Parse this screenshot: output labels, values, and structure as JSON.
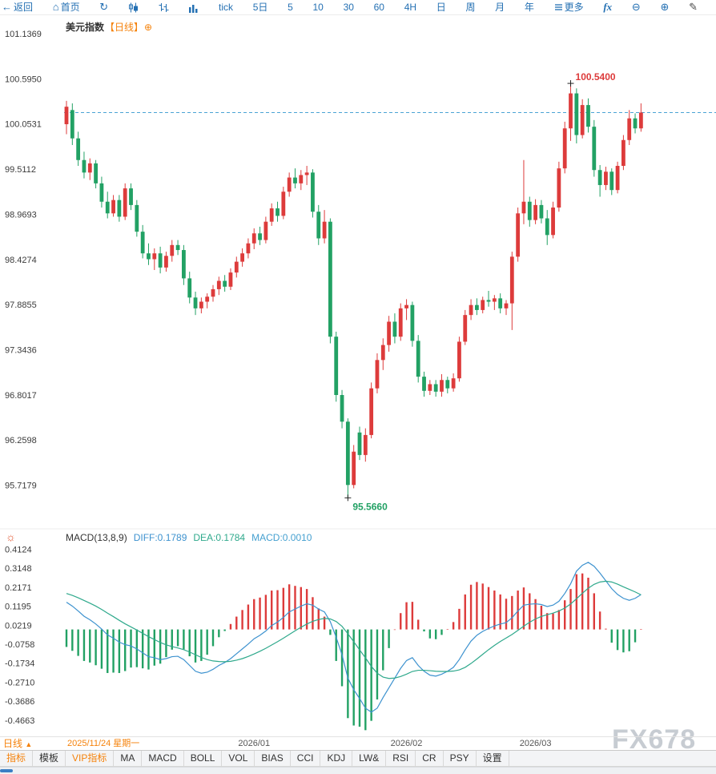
{
  "ui": {
    "toolbar": {
      "items": [
        {
          "name": "back-button",
          "icon": "back-icon",
          "label": "返回"
        },
        {
          "name": "home-button",
          "icon": "home-icon",
          "label": "首页"
        },
        {
          "name": "refresh-button",
          "icon": "refresh-icon",
          "label": ""
        },
        {
          "name": "candlestick-style-button",
          "icon": "candlestick-icon",
          "label": ""
        },
        {
          "name": "ohlc-style-button",
          "icon": "ohlc-bars-icon",
          "label": ""
        },
        {
          "name": "histogram-style-button",
          "icon": "histogram-icon",
          "label": ""
        },
        {
          "name": "period-tick-button",
          "label": "tick"
        },
        {
          "name": "period-5day-button",
          "label": "5日"
        },
        {
          "name": "period-5min-button",
          "label": "5"
        },
        {
          "name": "period-10min-button",
          "label": "10"
        },
        {
          "name": "period-30min-button",
          "label": "30"
        },
        {
          "name": "period-60min-button",
          "label": "60"
        },
        {
          "name": "period-4hour-button",
          "label": "4H"
        },
        {
          "name": "period-day-button",
          "label": "日"
        },
        {
          "name": "period-week-button",
          "label": "周"
        },
        {
          "name": "period-month-button",
          "label": "月"
        },
        {
          "name": "period-year-button",
          "label": "年"
        },
        {
          "name": "more-button",
          "icon": "menu-icon",
          "label": "更多"
        },
        {
          "name": "formula-button",
          "label": "fx"
        },
        {
          "name": "zoom-out-button",
          "icon": "zoom-out-icon",
          "label": ""
        },
        {
          "name": "zoom-in-button",
          "icon": "zoom-in-icon",
          "label": ""
        },
        {
          "name": "draw-pen-button",
          "icon": "pen-icon",
          "label": ""
        },
        {
          "name": "eraser-button",
          "icon": "eraser-icon",
          "label": ""
        }
      ]
    },
    "title": {
      "period_tag": "【日线】",
      "add_icon": "⊕"
    },
    "macd_header": {
      "sun_icon": "☼"
    },
    "x_axis": {
      "period_label": "日线",
      "period_arrow": "▲",
      "date_label": "2025/11/24 星期一"
    },
    "tabs": [
      {
        "name": "tab-indicators",
        "label": "指标",
        "accent": true
      },
      {
        "name": "tab-templates",
        "label": "模板",
        "accent": false
      },
      {
        "name": "tab-vip-indicators",
        "label": "VIP指标",
        "accent": true
      },
      {
        "name": "tab-ma",
        "label": "MA",
        "accent": false
      },
      {
        "name": "tab-macd",
        "label": "MACD",
        "accent": false
      },
      {
        "name": "tab-boll",
        "label": "BOLL",
        "accent": false
      },
      {
        "name": "tab-vol",
        "label": "VOL",
        "accent": false
      },
      {
        "name": "tab-bias",
        "label": "BIAS",
        "accent": false
      },
      {
        "name": "tab-cci",
        "label": "CCI",
        "accent": false
      },
      {
        "name": "tab-kdj",
        "label": "KDJ",
        "accent": false
      },
      {
        "name": "tab-lw",
        "label": "LW&",
        "accent": false
      },
      {
        "name": "tab-rsi",
        "label": "RSI",
        "accent": false
      },
      {
        "name": "tab-cr",
        "label": "CR",
        "accent": false
      },
      {
        "name": "tab-psy",
        "label": "PSY",
        "accent": false
      },
      {
        "name": "tab-settings",
        "label": "设置",
        "accent": false
      }
    ],
    "watermark": "FX678"
  },
  "colors": {
    "toolbar_blue": "#2470b3",
    "accent": "#f5820b",
    "up": "#dd3b3b",
    "down": "#22a164",
    "diff_line": "#3d92cf",
    "dea_line": "#2fa98c",
    "macd_value_label": "#45a0d0",
    "dashed_price_line": "#4aa3d4",
    "axis_text": "#3b3b3b",
    "watermark": "#c7ccd2",
    "sun_icon": "#e2542e",
    "scroll_thumb": "#3b7fc4"
  },
  "chart_data": [
    {
      "type": "candlestick",
      "symbol": "美元指数",
      "period": "日线",
      "title": "美元指数【日线】",
      "y_ticks": [
        "101.1369",
        "100.5950",
        "100.0531",
        "99.5112",
        "98.9693",
        "98.4274",
        "97.8855",
        "97.3436",
        "96.8017",
        "96.2598",
        "95.7179"
      ],
      "ylim": [
        95.24,
        101.37
      ],
      "legend_position": "top-left",
      "grid": false,
      "candles": [
        [
          100.05,
          100.33,
          99.93,
          100.26
        ],
        [
          100.22,
          100.3,
          99.8,
          99.88
        ],
        [
          99.88,
          99.96,
          99.55,
          99.62
        ],
        [
          99.62,
          99.72,
          99.4,
          99.47
        ],
        [
          99.47,
          99.64,
          99.38,
          99.58
        ],
        [
          99.58,
          99.62,
          99.28,
          99.34
        ],
        [
          99.34,
          99.42,
          99.05,
          99.12
        ],
        [
          99.12,
          99.24,
          98.92,
          98.98
        ],
        [
          98.98,
          99.2,
          98.94,
          99.14
        ],
        [
          99.14,
          99.2,
          98.88,
          98.94
        ],
        [
          98.94,
          99.34,
          98.9,
          99.28
        ],
        [
          99.28,
          99.34,
          99.02,
          99.08
        ],
        [
          99.08,
          99.14,
          98.7,
          98.76
        ],
        [
          98.76,
          98.84,
          98.44,
          98.5
        ],
        [
          98.5,
          98.62,
          98.36,
          98.43
        ],
        [
          98.43,
          98.56,
          98.3,
          98.5
        ],
        [
          98.5,
          98.58,
          98.26,
          98.33
        ],
        [
          98.33,
          98.52,
          98.28,
          98.47
        ],
        [
          98.47,
          98.66,
          98.4,
          98.6
        ],
        [
          98.6,
          98.66,
          98.48,
          98.54
        ],
        [
          98.54,
          98.6,
          98.12,
          98.2
        ],
        [
          98.2,
          98.28,
          97.9,
          97.97
        ],
        [
          97.97,
          98.04,
          97.76,
          97.84
        ],
        [
          97.84,
          97.97,
          97.78,
          97.92
        ],
        [
          97.92,
          98.02,
          97.84,
          97.98
        ],
        [
          97.98,
          98.12,
          97.92,
          98.07
        ],
        [
          98.07,
          98.22,
          98.0,
          98.17
        ],
        [
          98.17,
          98.24,
          98.04,
          98.1
        ],
        [
          98.1,
          98.32,
          98.06,
          98.27
        ],
        [
          98.27,
          98.46,
          98.21,
          98.4
        ],
        [
          98.4,
          98.56,
          98.34,
          98.5
        ],
        [
          98.5,
          98.68,
          98.44,
          98.62
        ],
        [
          98.62,
          98.8,
          98.55,
          98.74
        ],
        [
          98.74,
          98.82,
          98.6,
          98.66
        ],
        [
          98.66,
          98.94,
          98.62,
          98.88
        ],
        [
          98.88,
          99.1,
          98.83,
          99.04
        ],
        [
          99.04,
          99.12,
          98.88,
          98.95
        ],
        [
          98.95,
          99.3,
          98.91,
          99.24
        ],
        [
          99.24,
          99.47,
          99.18,
          99.41
        ],
        [
          99.41,
          99.52,
          99.28,
          99.34
        ],
        [
          99.34,
          99.5,
          99.26,
          99.44
        ],
        [
          99.44,
          99.55,
          99.32,
          99.47
        ],
        [
          99.47,
          99.51,
          98.93,
          99.0
        ],
        [
          99.0,
          99.08,
          98.6,
          98.68
        ],
        [
          98.68,
          99.02,
          98.62,
          98.88
        ],
        [
          98.88,
          98.92,
          97.42,
          97.5
        ],
        [
          97.5,
          97.56,
          96.72,
          96.8
        ],
        [
          96.8,
          96.86,
          96.4,
          96.48
        ],
        [
          96.48,
          96.52,
          95.566,
          95.72
        ],
        [
          95.72,
          96.2,
          95.68,
          96.12
        ],
        [
          96.35,
          96.42,
          96.02,
          96.08
        ],
        [
          96.08,
          96.4,
          96.0,
          96.32
        ],
        [
          96.32,
          96.95,
          96.28,
          96.88
        ],
        [
          96.88,
          97.3,
          96.82,
          97.22
        ],
        [
          97.22,
          97.48,
          97.1,
          97.4
        ],
        [
          97.4,
          97.75,
          97.32,
          97.68
        ],
        [
          97.68,
          97.78,
          97.42,
          97.5
        ],
        [
          97.5,
          97.9,
          97.45,
          97.84
        ],
        [
          97.84,
          97.95,
          97.7,
          97.88
        ],
        [
          97.88,
          97.92,
          97.38,
          97.45
        ],
        [
          97.45,
          97.52,
          96.95,
          97.02
        ],
        [
          97.02,
          97.08,
          96.78,
          96.85
        ],
        [
          96.85,
          96.98,
          96.8,
          96.93
        ],
        [
          96.93,
          96.98,
          96.78,
          96.84
        ],
        [
          96.84,
          97.05,
          96.78,
          96.98
        ],
        [
          96.98,
          97.02,
          96.82,
          96.88
        ],
        [
          96.88,
          97.06,
          96.84,
          97.0
        ],
        [
          97.0,
          97.5,
          96.96,
          97.44
        ],
        [
          97.44,
          97.82,
          97.4,
          97.76
        ],
        [
          97.76,
          97.95,
          97.7,
          97.88
        ],
        [
          97.88,
          97.96,
          97.76,
          97.82
        ],
        [
          97.82,
          97.98,
          97.78,
          97.94
        ],
        [
          97.94,
          98.05,
          97.86,
          97.92
        ],
        [
          97.92,
          98.0,
          97.82,
          97.96
        ],
        [
          97.96,
          98.02,
          97.78,
          97.84
        ],
        [
          97.84,
          97.94,
          97.76,
          97.9
        ],
        [
          97.9,
          98.52,
          97.58,
          98.46
        ],
        [
          98.46,
          99.05,
          98.4,
          98.98
        ],
        [
          98.98,
          99.62,
          98.85,
          99.12
        ],
        [
          99.12,
          99.18,
          98.82,
          98.9
        ],
        [
          98.9,
          99.15,
          98.85,
          99.08
        ],
        [
          99.08,
          99.14,
          98.86,
          98.92
        ],
        [
          98.92,
          99.02,
          98.6,
          98.72
        ],
        [
          98.72,
          99.12,
          98.68,
          99.05
        ],
        [
          99.05,
          99.6,
          99.0,
          99.52
        ],
        [
          99.52,
          100.08,
          99.46,
          100.0
        ],
        [
          100.0,
          100.54,
          99.85,
          100.42
        ],
        [
          100.42,
          100.48,
          99.82,
          99.92
        ],
        [
          99.92,
          100.35,
          99.88,
          100.28
        ],
        [
          100.28,
          100.36,
          99.95,
          100.02
        ],
        [
          100.02,
          100.1,
          99.42,
          99.5
        ],
        [
          99.5,
          99.56,
          99.18,
          99.32
        ],
        [
          99.32,
          99.54,
          99.26,
          99.48
        ],
        [
          99.48,
          99.52,
          99.2,
          99.26
        ],
        [
          99.26,
          99.6,
          99.22,
          99.55
        ],
        [
          99.55,
          99.92,
          99.5,
          99.86
        ],
        [
          99.86,
          100.22,
          99.8,
          100.12
        ],
        [
          100.12,
          100.18,
          99.94,
          100.0
        ],
        [
          100.0,
          100.3,
          99.96,
          100.19
        ]
      ],
      "high_annotation": {
        "index": 86,
        "price": 100.54,
        "label": "100.5400"
      },
      "low_annotation": {
        "index": 48,
        "price": 95.566,
        "label": "95.5660"
      },
      "last_price_line": 100.19,
      "x_labels": [
        {
          "label": "2026/01",
          "index": 32
        },
        {
          "label": "2026/02",
          "index": 58
        },
        {
          "label": "2026/03",
          "index": 80
        }
      ],
      "start_date_label": "2025/11/24 星期一"
    },
    {
      "type": "macd",
      "params_label": "MACD(13,8,9)",
      "diff_label": "DIFF:0.1789",
      "dea_label": "DEA:0.1784",
      "macd_label": "MACD:0.0010",
      "diff_value": 0.1789,
      "dea_value": 0.1784,
      "macd_value": 0.001,
      "histogram_formula": "(diff-dea)*2",
      "y_ticks": [
        "0.4124",
        "0.3148",
        "0.2171",
        "0.1195",
        "0.0219",
        "-0.0758",
        "-0.1734",
        "-0.2710",
        "-0.3686",
        "-0.4663"
      ],
      "diff": [
        0.14,
        0.12,
        0.095,
        0.068,
        0.05,
        0.028,
        0.002,
        -0.028,
        -0.045,
        -0.065,
        -0.078,
        -0.085,
        -0.1,
        -0.12,
        -0.14,
        -0.145,
        -0.155,
        -0.15,
        -0.14,
        -0.138,
        -0.155,
        -0.185,
        -0.215,
        -0.225,
        -0.22,
        -0.205,
        -0.185,
        -0.17,
        -0.15,
        -0.125,
        -0.1,
        -0.075,
        -0.048,
        -0.03,
        -0.008,
        0.02,
        0.038,
        0.062,
        0.09,
        0.105,
        0.12,
        0.132,
        0.125,
        0.105,
        0.09,
        0.04,
        -0.04,
        -0.13,
        -0.25,
        -0.31,
        -0.355,
        -0.405,
        -0.425,
        -0.405,
        -0.35,
        -0.3,
        -0.25,
        -0.2,
        -0.16,
        -0.145,
        -0.185,
        -0.215,
        -0.235,
        -0.24,
        -0.23,
        -0.215,
        -0.195,
        -0.155,
        -0.105,
        -0.06,
        -0.03,
        -0.01,
        0.005,
        0.018,
        0.028,
        0.035,
        0.06,
        0.095,
        0.125,
        0.13,
        0.132,
        0.128,
        0.118,
        0.125,
        0.145,
        0.185,
        0.235,
        0.3,
        0.33,
        0.345,
        0.325,
        0.29,
        0.25,
        0.21,
        0.18,
        0.16,
        0.15,
        0.16,
        0.179
      ],
      "dea": [
        0.185,
        0.175,
        0.163,
        0.149,
        0.135,
        0.12,
        0.103,
        0.084,
        0.066,
        0.047,
        0.029,
        0.013,
        -0.003,
        -0.02,
        -0.037,
        -0.052,
        -0.067,
        -0.079,
        -0.088,
        -0.095,
        -0.104,
        -0.116,
        -0.13,
        -0.144,
        -0.155,
        -0.162,
        -0.165,
        -0.166,
        -0.164,
        -0.158,
        -0.15,
        -0.139,
        -0.126,
        -0.112,
        -0.097,
        -0.08,
        -0.063,
        -0.045,
        -0.026,
        -0.007,
        0.011,
        0.028,
        0.042,
        0.051,
        0.057,
        0.054,
        0.041,
        0.016,
        -0.022,
        -0.063,
        -0.105,
        -0.146,
        -0.19,
        -0.225,
        -0.245,
        -0.252,
        -0.25,
        -0.242,
        -0.23,
        -0.216,
        -0.21,
        -0.21,
        -0.212,
        -0.215,
        -0.216,
        -0.216,
        -0.214,
        -0.208,
        -0.195,
        -0.175,
        -0.152,
        -0.128,
        -0.104,
        -0.082,
        -0.062,
        -0.044,
        -0.026,
        -0.005,
        0.017,
        0.037,
        0.054,
        0.067,
        0.076,
        0.084,
        0.095,
        0.11,
        0.131,
        0.158,
        0.186,
        0.212,
        0.232,
        0.244,
        0.248,
        0.244,
        0.233,
        0.219,
        0.206,
        0.193,
        0.178
      ]
    }
  ]
}
